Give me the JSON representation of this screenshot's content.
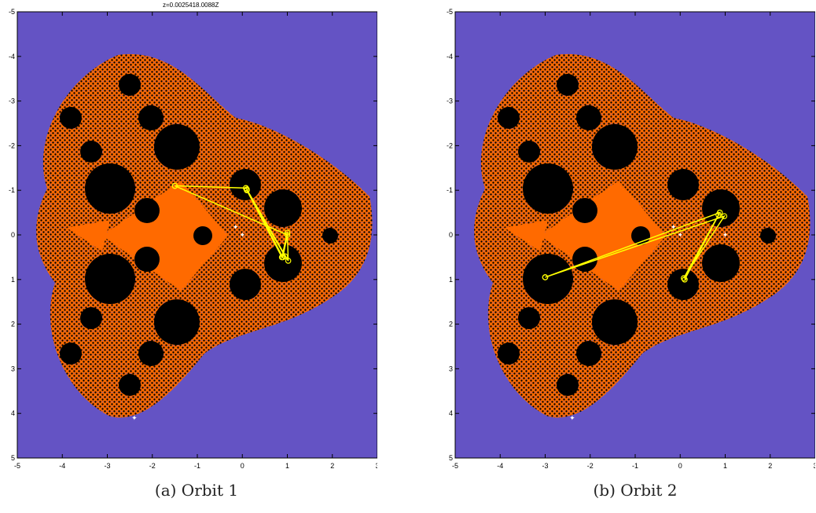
{
  "colors": {
    "background": "#6453c4",
    "fill": "#ff6a00",
    "basin": "#000000",
    "orbit": "#ffff00",
    "marker": "#ffffff"
  },
  "axis": {
    "xlim": [
      -5,
      3
    ],
    "ylim": [
      -5,
      5
    ],
    "xticks": [
      "-5",
      "-4",
      "-3",
      "-2",
      "-1",
      "0",
      "1",
      "2",
      "3"
    ],
    "yticks": [
      "-5",
      "-4",
      "-3",
      "-2",
      "-1",
      "0",
      "1",
      "2",
      "3",
      "4",
      "5"
    ]
  },
  "panels": [
    {
      "caption": "(a) Orbit 1",
      "top_text": "z=0.0025418.0088Z",
      "orbit": [
        [
          -1.5,
          -1.1
        ],
        [
          0.08,
          -1.05
        ],
        [
          0.95,
          0.48
        ],
        [
          0.1,
          -1.0
        ],
        [
          0.88,
          0.5
        ],
        [
          1.0,
          -0.05
        ],
        [
          1.02,
          0.58
        ],
        [
          0.1,
          -1.02
        ],
        [
          0.9,
          0.5
        ],
        [
          1.0,
          0.0
        ],
        [
          -1.5,
          -1.1
        ]
      ],
      "markers": [
        [
          -0.15,
          -0.18
        ],
        [
          0.0,
          0.0
        ],
        [
          -2.4,
          4.1
        ]
      ]
    },
    {
      "caption": "(b) Orbit 2",
      "top_text": "",
      "orbit": [
        [
          -3.0,
          0.95
        ],
        [
          0.88,
          -0.5
        ],
        [
          0.1,
          1.0
        ],
        [
          0.85,
          -0.45
        ],
        [
          0.08,
          0.97
        ],
        [
          0.98,
          -0.42
        ],
        [
          -3.0,
          0.95
        ]
      ],
      "markers": [
        [
          -0.15,
          -0.18
        ],
        [
          0.0,
          0.0
        ],
        [
          1.0,
          0.0
        ],
        [
          -2.4,
          4.1
        ]
      ]
    }
  ]
}
